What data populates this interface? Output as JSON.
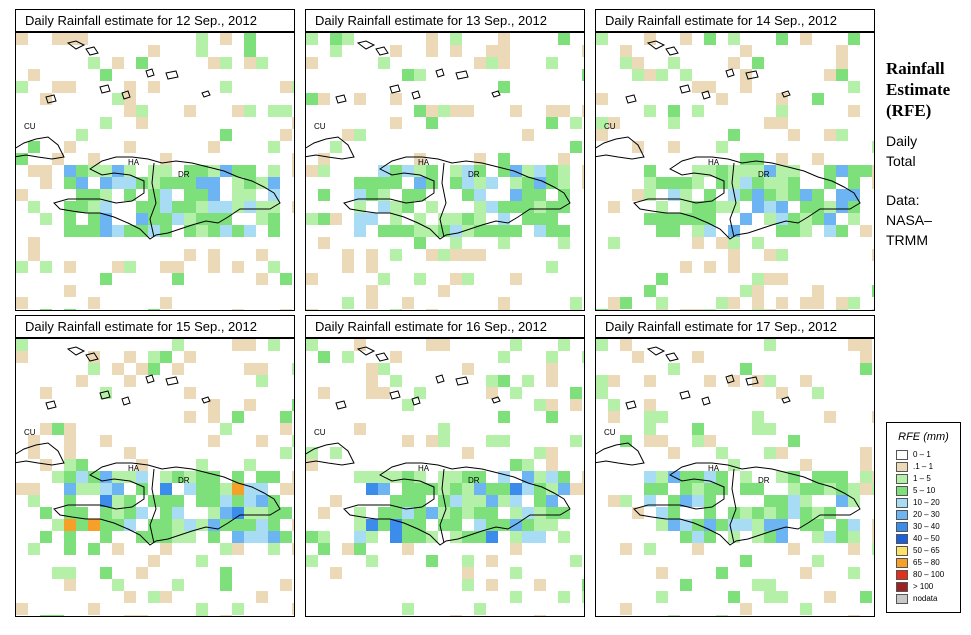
{
  "panels": [
    {
      "title": "Daily Rainfall estimate for  12 Sep., 2012"
    },
    {
      "title": "Daily Rainfall estimate for  13 Sep., 2012"
    },
    {
      "title": "Daily Rainfall estimate for  14 Sep., 2012"
    },
    {
      "title": "Daily Rainfall estimate for  15 Sep., 2012"
    },
    {
      "title": "Daily Rainfall estimate for  16 Sep., 2012"
    },
    {
      "title": "Daily Rainfall estimate for  17 Sep., 2012"
    }
  ],
  "map_labels": {
    "cuba": "CU",
    "haiti": "HA",
    "dominican_republic": "DR"
  },
  "sidebar": {
    "title_line1": "Rainfall",
    "title_line2": "Estimate",
    "title_line3": "(RFE)",
    "period_line1": "Daily",
    "period_line2": "Total",
    "source_line1": "Data:",
    "source_line2": "NASA–",
    "source_line3": "TRMM"
  },
  "legend": {
    "title": "RFE (mm)",
    "items": [
      {
        "label": "0 – 1",
        "color": "#ffffff"
      },
      {
        "label": ".1 – 1",
        "color": "#ecd9b8"
      },
      {
        "label": "1 – 5",
        "color": "#b5f0a8"
      },
      {
        "label": "5 – 10",
        "color": "#7ee07a"
      },
      {
        "label": "10 – 20",
        "color": "#a8dcf5"
      },
      {
        "label": "20 – 30",
        "color": "#6cb4f2"
      },
      {
        "label": "30 – 40",
        "color": "#3c8cec"
      },
      {
        "label": "40 – 50",
        "color": "#1e5fd8"
      },
      {
        "label": "50 – 65",
        "color": "#fde26a"
      },
      {
        "label": "65 – 80",
        "color": "#f6a02a"
      },
      {
        "label": "80 – 100",
        "color": "#e0301e"
      },
      {
        "label": "> 100",
        "color": "#9a2424"
      },
      {
        "label": "nodata",
        "color": "#c8c8c8"
      }
    ]
  }
}
